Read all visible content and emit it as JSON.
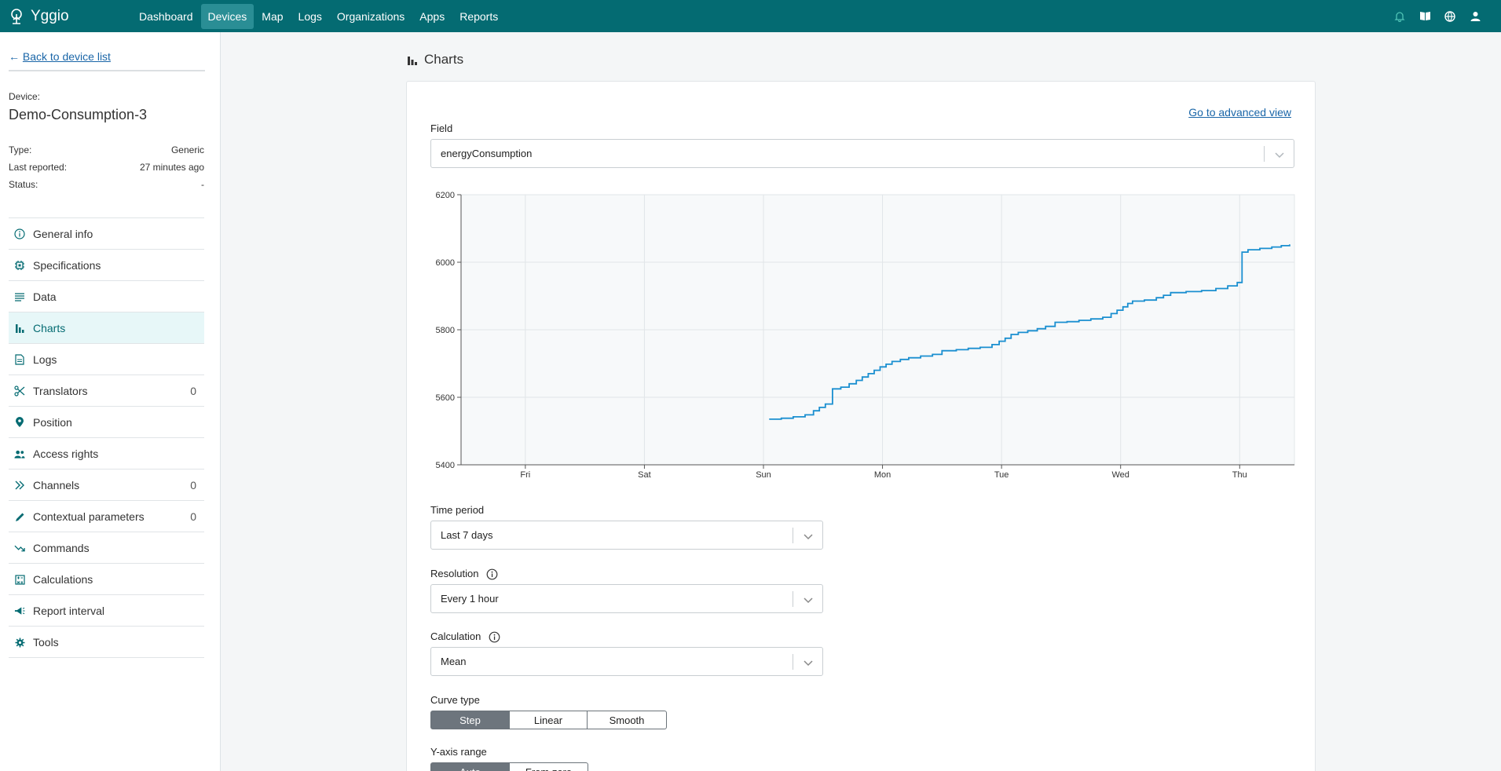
{
  "app": {
    "name": "Yggio"
  },
  "nav": {
    "items": [
      {
        "label": "Dashboard",
        "active": false
      },
      {
        "label": "Devices",
        "active": true
      },
      {
        "label": "Map",
        "active": false
      },
      {
        "label": "Logs",
        "active": false
      },
      {
        "label": "Organizations",
        "active": false
      },
      {
        "label": "Apps",
        "active": false
      },
      {
        "label": "Reports",
        "active": false
      }
    ],
    "icons": [
      "bell-icon",
      "book-icon",
      "globe-icon",
      "user-icon"
    ]
  },
  "sidebar": {
    "back_label": "Back to device list",
    "device_label": "Device:",
    "device_name": "Demo-Consumption-3",
    "details": [
      {
        "key": "Type:",
        "value": "Generic"
      },
      {
        "key": "Last reported:",
        "value": "27 minutes ago"
      },
      {
        "key": "Status:",
        "value": "-"
      }
    ],
    "items": [
      {
        "label": "General info",
        "icon": "info-icon",
        "count": ""
      },
      {
        "label": "Specifications",
        "icon": "chip-icon",
        "count": ""
      },
      {
        "label": "Data",
        "icon": "list-icon",
        "count": ""
      },
      {
        "label": "Charts",
        "icon": "bar-chart-icon",
        "count": "",
        "active": true
      },
      {
        "label": "Logs",
        "icon": "document-icon",
        "count": ""
      },
      {
        "label": "Translators",
        "icon": "scissors-icon",
        "count": "0"
      },
      {
        "label": "Position",
        "icon": "pin-icon",
        "count": ""
      },
      {
        "label": "Access rights",
        "icon": "users-icon",
        "count": ""
      },
      {
        "label": "Channels",
        "icon": "chevrons-right-icon",
        "count": "0"
      },
      {
        "label": "Contextual parameters",
        "icon": "pencil-icon",
        "count": "0"
      },
      {
        "label": "Commands",
        "icon": "trend-icon",
        "count": ""
      },
      {
        "label": "Calculations",
        "icon": "calculator-icon",
        "count": ""
      },
      {
        "label": "Report interval",
        "icon": "megaphone-icon",
        "count": ""
      },
      {
        "label": "Tools",
        "icon": "cog-icon",
        "count": ""
      }
    ]
  },
  "main": {
    "section_title": "Charts",
    "advanced_link": "Go to advanced view",
    "field": {
      "label": "Field",
      "value": "energyConsumption"
    },
    "time_period": {
      "label": "Time period",
      "value": "Last 7 days"
    },
    "resolution": {
      "label": "Resolution",
      "value": "Every 1 hour"
    },
    "calculation": {
      "label": "Calculation",
      "value": "Mean"
    },
    "curve_type": {
      "label": "Curve type",
      "options": [
        "Step",
        "Linear",
        "Smooth"
      ],
      "selected": "Step"
    },
    "y_axis_range": {
      "label": "Y-axis range",
      "options": [
        "Auto",
        "From zero"
      ],
      "selected": "Auto"
    }
  },
  "colors": {
    "topbar": "#046b72",
    "accent": "#046b72",
    "line": "#1a8fd0",
    "link": "#1a66a8"
  },
  "chart_data": {
    "type": "line",
    "curve": "step",
    "x_ticks": [
      "Fri",
      "Sat",
      "Sun",
      "Mon",
      "Tue",
      "Wed",
      "Thu"
    ],
    "ylim": [
      5400,
      6200
    ],
    "y_ticks": [
      5400,
      5600,
      5800,
      6000,
      6200
    ],
    "grid": true,
    "x_unit": "days (Fri = 0)",
    "series": [
      {
        "name": "energyConsumption",
        "points": [
          [
            2.05,
            5535
          ],
          [
            2.15,
            5538
          ],
          [
            2.25,
            5542
          ],
          [
            2.35,
            5548
          ],
          [
            2.42,
            5560
          ],
          [
            2.47,
            5570
          ],
          [
            2.52,
            5580
          ],
          [
            2.58,
            5625
          ],
          [
            2.65,
            5630
          ],
          [
            2.72,
            5640
          ],
          [
            2.78,
            5650
          ],
          [
            2.83,
            5660
          ],
          [
            2.88,
            5670
          ],
          [
            2.93,
            5680
          ],
          [
            2.98,
            5690
          ],
          [
            3.03,
            5698
          ],
          [
            3.08,
            5706
          ],
          [
            3.15,
            5712
          ],
          [
            3.22,
            5717
          ],
          [
            3.32,
            5722
          ],
          [
            3.42,
            5727
          ],
          [
            3.5,
            5738
          ],
          [
            3.62,
            5741
          ],
          [
            3.72,
            5745
          ],
          [
            3.82,
            5748
          ],
          [
            3.92,
            5756
          ],
          [
            3.98,
            5766
          ],
          [
            4.03,
            5775
          ],
          [
            4.08,
            5786
          ],
          [
            4.14,
            5792
          ],
          [
            4.22,
            5797
          ],
          [
            4.3,
            5803
          ],
          [
            4.37,
            5810
          ],
          [
            4.45,
            5822
          ],
          [
            4.55,
            5824
          ],
          [
            4.65,
            5828
          ],
          [
            4.75,
            5832
          ],
          [
            4.85,
            5837
          ],
          [
            4.92,
            5848
          ],
          [
            4.97,
            5858
          ],
          [
            5.02,
            5868
          ],
          [
            5.06,
            5878
          ],
          [
            5.1,
            5885
          ],
          [
            5.2,
            5888
          ],
          [
            5.3,
            5895
          ],
          [
            5.36,
            5902
          ],
          [
            5.42,
            5910
          ],
          [
            5.55,
            5913
          ],
          [
            5.68,
            5916
          ],
          [
            5.8,
            5922
          ],
          [
            5.9,
            5930
          ],
          [
            5.98,
            5940
          ],
          [
            6.02,
            6030
          ],
          [
            6.07,
            6037
          ],
          [
            6.17,
            6041
          ],
          [
            6.27,
            6045
          ],
          [
            6.35,
            6049
          ],
          [
            6.42,
            6052
          ]
        ]
      }
    ]
  }
}
